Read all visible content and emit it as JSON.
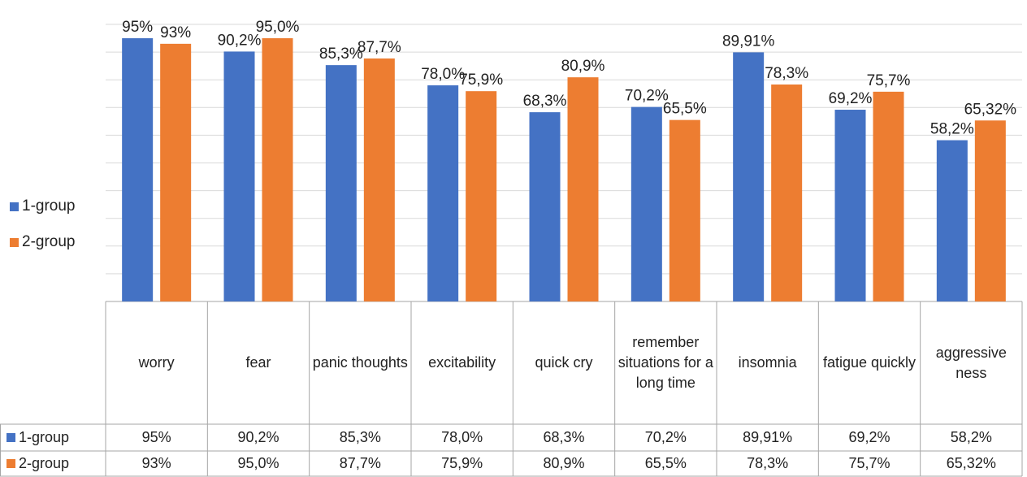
{
  "chart_data": {
    "type": "bar",
    "categories": [
      "worry",
      "fear",
      "panic thoughts",
      "excitability",
      "quick cry",
      "remember situations for a long time",
      "insomnia",
      "fatigue quickly",
      "aggressive ness"
    ],
    "series": [
      {
        "name": "1-group",
        "color": "#4472c4",
        "values": [
          95,
          90.2,
          85.3,
          78.0,
          68.3,
          70.2,
          89.91,
          69.2,
          58.2
        ],
        "value_labels": [
          "95%",
          "90,2%",
          "85,3%",
          "78,0%",
          "68,3%",
          "70,2%",
          "89,91%",
          "69,2%",
          "58,2%"
        ]
      },
      {
        "name": "2-group",
        "color": "#ed7d31",
        "values": [
          93,
          95.0,
          87.7,
          75.9,
          80.9,
          65.5,
          78.3,
          75.7,
          65.32
        ],
        "value_labels": [
          "93%",
          "95,0%",
          "87,7%",
          "75,9%",
          "80,9%",
          "65,5%",
          "78,3%",
          "75,7%",
          "65,32%"
        ]
      }
    ],
    "ylim": [
      0,
      100
    ],
    "yticks": [
      0,
      10,
      20,
      30,
      40,
      50,
      60,
      70,
      80,
      90,
      100
    ],
    "grid": true,
    "legend": "left"
  }
}
